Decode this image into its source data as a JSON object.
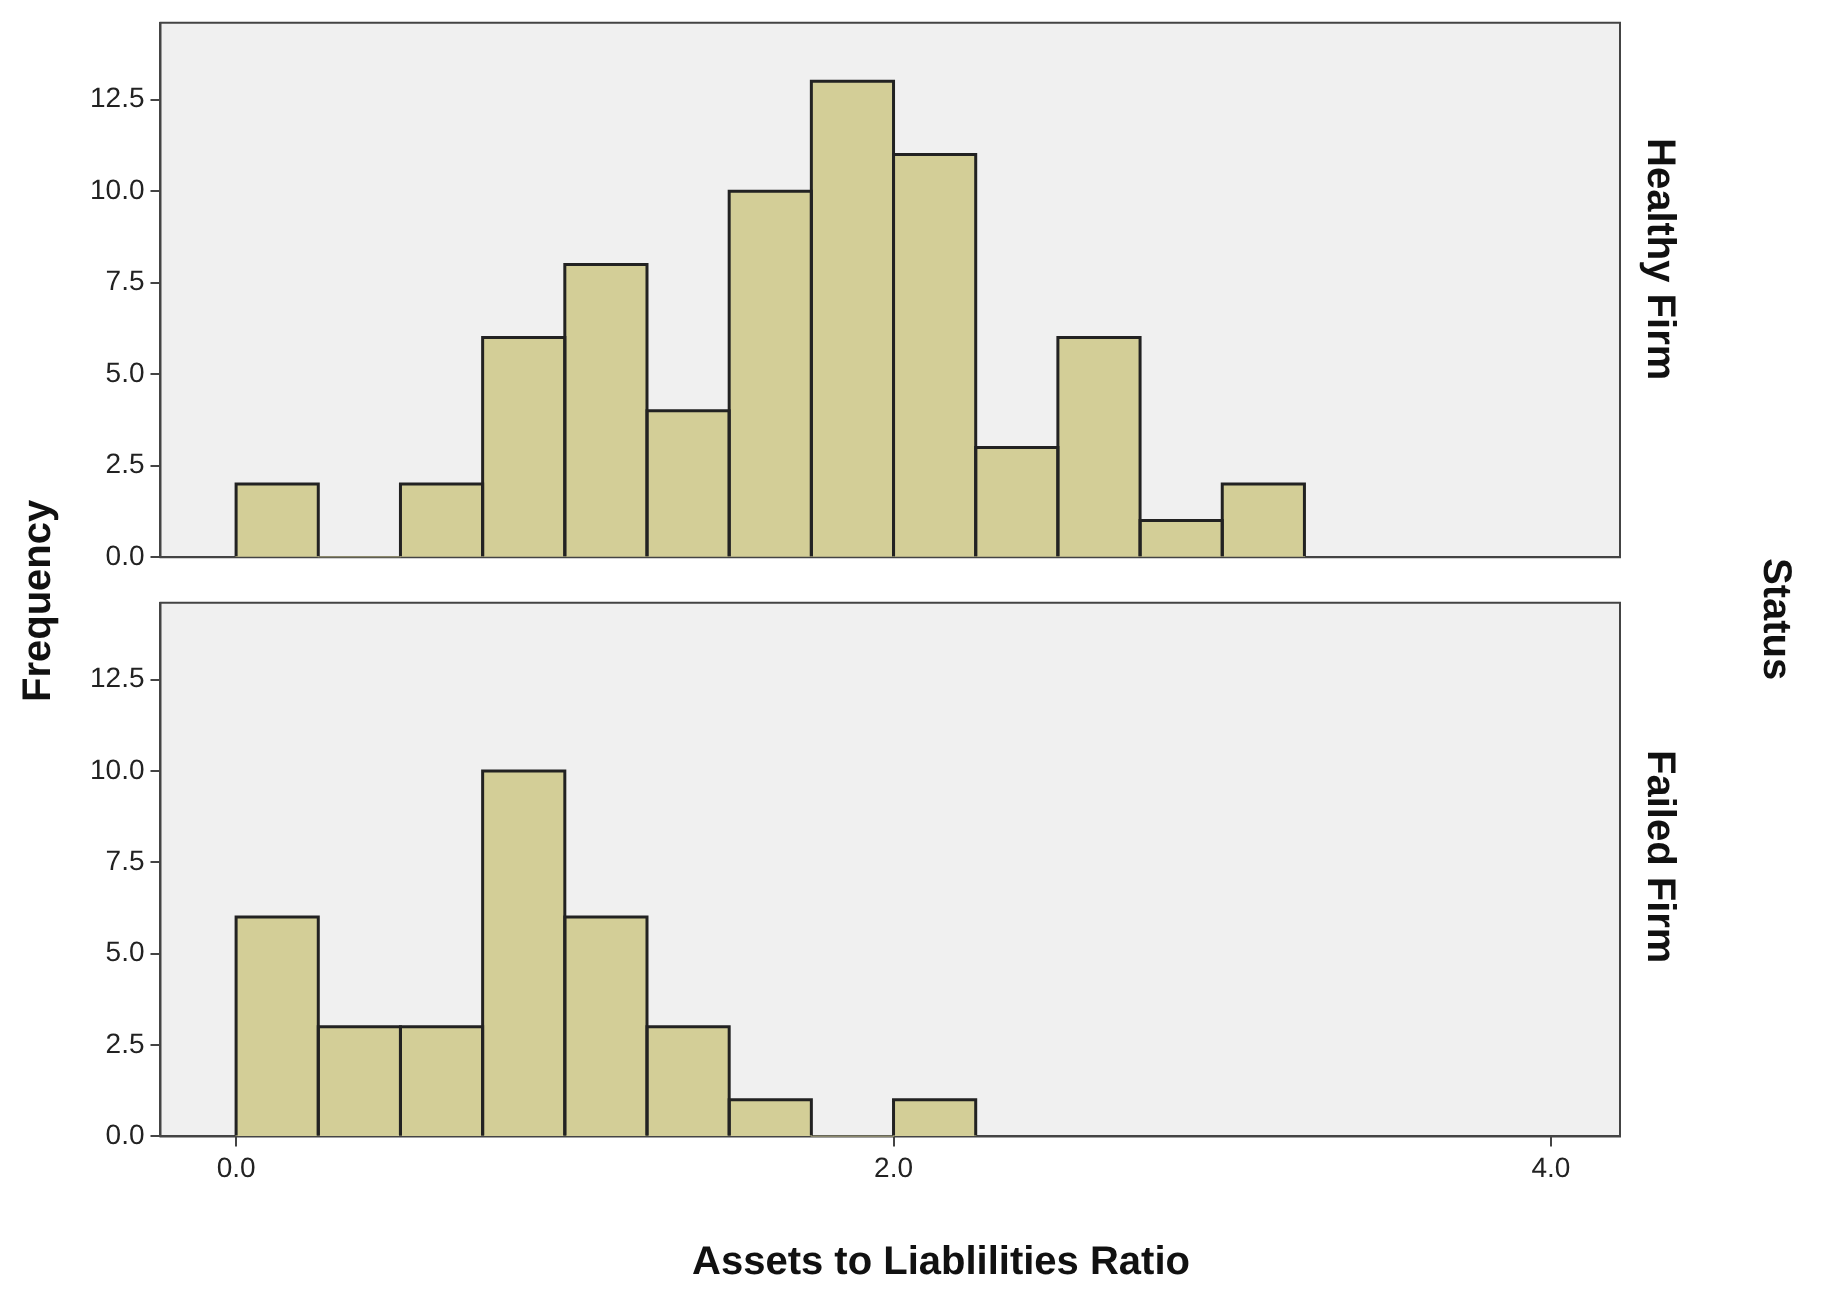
{
  "chart_data": [
    {
      "type": "histogram",
      "title": "Healthy Firm",
      "ylabel": "Frequency",
      "annotations": [
        "Status"
      ],
      "bins": [
        0,
        0.25,
        0.5,
        0.75,
        1,
        1.25,
        1.5,
        1.75,
        2,
        2.25,
        2.5,
        2.75,
        3,
        3.25
      ],
      "values": [
        2,
        0,
        2,
        6,
        8,
        4,
        10,
        13,
        11,
        3,
        6,
        1,
        2
      ],
      "color": "#d3ce97",
      "xlim": [
        -0.23,
        4.21
      ],
      "ylim": [
        0,
        14.6
      ],
      "yticks": [
        {
          "value": 0,
          "label": "0.0"
        },
        {
          "value": 2.5,
          "label": "2.5"
        },
        {
          "value": 5,
          "label": "5.0"
        },
        {
          "value": 7.5,
          "label": "7.5"
        },
        {
          "value": 10,
          "label": "10.0"
        },
        {
          "value": 12.5,
          "label": "12.5"
        }
      ],
      "tick_labels": "y",
      "grid": false
    },
    {
      "type": "histogram",
      "title": "Failed Firm",
      "xlabel": "Assets to Liablilities Ratio",
      "bins": [
        0,
        0.25,
        0.5,
        0.75,
        1,
        1.25,
        1.5,
        1.75,
        2,
        2.25
      ],
      "values": [
        6,
        3,
        3,
        10,
        6,
        3,
        1,
        0,
        1
      ],
      "color": "#d3ce97",
      "xlim": [
        -0.23,
        4.21
      ],
      "ylim": [
        0,
        14.6
      ],
      "xticks": [
        {
          "value": 0,
          "label": "0.0"
        },
        {
          "value": 2,
          "label": "2.0"
        },
        {
          "value": 4,
          "label": "4.0"
        }
      ],
      "yticks": [
        {
          "value": 0,
          "label": "0.0"
        },
        {
          "value": 2.5,
          "label": "2.5"
        },
        {
          "value": 5,
          "label": "5.0"
        },
        {
          "value": 7.5,
          "label": "7.5"
        },
        {
          "value": 10,
          "label": "10.0"
        },
        {
          "value": 12.5,
          "label": "12.5"
        }
      ],
      "grid": false
    }
  ]
}
